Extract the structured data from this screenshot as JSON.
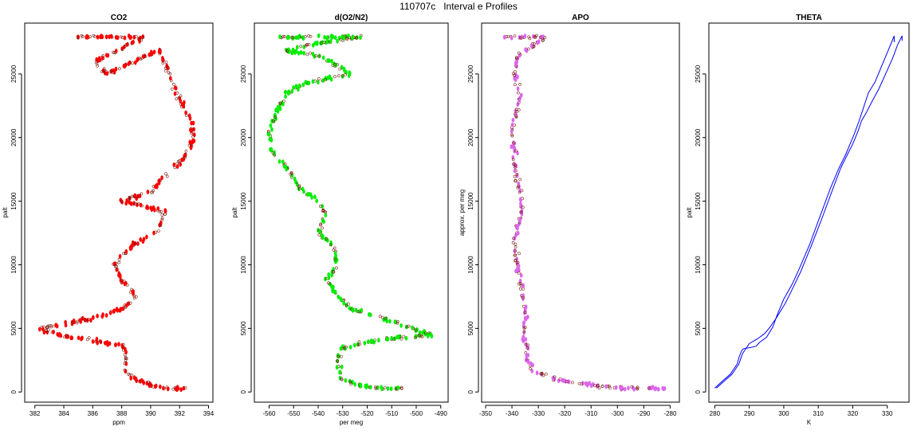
{
  "title": "110707c   Interval e Profiles",
  "chart_data": [
    {
      "type": "scatter",
      "title": "CO2",
      "xlabel": "ppm",
      "ylabel": "palt",
      "xlim": [
        381.3,
        394.3
      ],
      "ylim": [
        -800,
        29000
      ],
      "xticks": [
        382,
        384,
        386,
        388,
        390,
        392,
        394
      ],
      "yticks": [
        0,
        5000,
        10000,
        15000,
        20000,
        25000
      ],
      "grid": false,
      "color": "#ff0000",
      "profile": [
        [
          384.8,
          27900
        ],
        [
          388.3,
          27900
        ],
        [
          389.5,
          27900
        ],
        [
          388.5,
          27300
        ],
        [
          386.2,
          26000
        ],
        [
          387.0,
          25000
        ],
        [
          390.6,
          26900
        ],
        [
          391.6,
          24000
        ],
        [
          392.1,
          22800
        ],
        [
          392.7,
          21500
        ],
        [
          393.0,
          20000
        ],
        [
          392.4,
          18500
        ],
        [
          391.0,
          17000
        ],
        [
          390.0,
          15800
        ],
        [
          388.0,
          15000
        ],
        [
          391.0,
          14200
        ],
        [
          390.4,
          12600
        ],
        [
          388.7,
          11500
        ],
        [
          387.5,
          10000
        ],
        [
          388.0,
          8800
        ],
        [
          389.0,
          7500
        ],
        [
          388.2,
          6600
        ],
        [
          386.0,
          5800
        ],
        [
          383.5,
          5200
        ],
        [
          382.2,
          5000
        ],
        [
          384.0,
          4400
        ],
        [
          386.4,
          4000
        ],
        [
          388.1,
          3600
        ],
        [
          388.3,
          2600
        ],
        [
          388.2,
          1600
        ],
        [
          389.0,
          1000
        ],
        [
          390.8,
          300
        ],
        [
          391.5,
          300
        ],
        [
          392.5,
          300
        ]
      ]
    },
    {
      "type": "scatter",
      "title": "d(O2/N2)",
      "xlabel": "per meg",
      "ylabel": "palt",
      "xlim": [
        -566,
        -487
      ],
      "ylim": [
        -800,
        29000
      ],
      "xticks": [
        -560,
        -550,
        -540,
        -530,
        -520,
        -510,
        -500,
        -490
      ],
      "yticks": [
        0,
        5000,
        10000,
        15000,
        20000,
        25000
      ],
      "grid": false,
      "color": "#00ee00",
      "profile": [
        [
          -556,
          27900
        ],
        [
          -530,
          27900
        ],
        [
          -522,
          27900
        ],
        [
          -545,
          27300
        ],
        [
          -553,
          26800
        ],
        [
          -540,
          26500
        ],
        [
          -527,
          25000
        ],
        [
          -545,
          24300
        ],
        [
          -553,
          23500
        ],
        [
          -557,
          22000
        ],
        [
          -560,
          20500
        ],
        [
          -559,
          19000
        ],
        [
          -552,
          17400
        ],
        [
          -547,
          16000
        ],
        [
          -540,
          15000
        ],
        [
          -537,
          14000
        ],
        [
          -540,
          12500
        ],
        [
          -534,
          11500
        ],
        [
          -532,
          10000
        ],
        [
          -537,
          8800
        ],
        [
          -532,
          7600
        ],
        [
          -526,
          6500
        ],
        [
          -517,
          6000
        ],
        [
          -510,
          5600
        ],
        [
          -499,
          4800
        ],
        [
          -494,
          4500
        ],
        [
          -515,
          4100
        ],
        [
          -530,
          3500
        ],
        [
          -532,
          2600
        ],
        [
          -531,
          1600
        ],
        [
          -530,
          1000
        ],
        [
          -522,
          500
        ],
        [
          -514,
          300
        ],
        [
          -505,
          300
        ]
      ]
    },
    {
      "type": "scatter",
      "title": "APO",
      "xlabel": "",
      "ylabel": "approx. per meg",
      "xlim": [
        -351.5,
        -276.5
      ],
      "ylim": [
        -800,
        29000
      ],
      "xticks": [
        -350,
        -340,
        -330,
        -320,
        -310,
        -300,
        -290,
        -280
      ],
      "yticks": [
        0,
        5000,
        10000,
        15000,
        20000,
        25000
      ],
      "grid": false,
      "color": "#dd66ee",
      "profile": [
        [
          -343,
          27900
        ],
        [
          -334,
          27900
        ],
        [
          -327,
          27900
        ],
        [
          -338,
          26500
        ],
        [
          -339,
          25000
        ],
        [
          -337,
          23500
        ],
        [
          -338,
          22000
        ],
        [
          -340,
          20500
        ],
        [
          -339,
          19000
        ],
        [
          -339,
          17500
        ],
        [
          -337,
          16000
        ],
        [
          -336,
          14500
        ],
        [
          -338,
          13000
        ],
        [
          -339,
          11500
        ],
        [
          -338,
          10000
        ],
        [
          -337,
          8800
        ],
        [
          -336,
          7600
        ],
        [
          -335,
          6500
        ],
        [
          -335,
          5500
        ],
        [
          -336,
          4500
        ],
        [
          -334,
          3500
        ],
        [
          -334,
          2500
        ],
        [
          -331,
          1600
        ],
        [
          -322,
          900
        ],
        [
          -311,
          600
        ],
        [
          -300,
          300
        ],
        [
          -290,
          300
        ],
        [
          -282,
          300
        ]
      ]
    },
    {
      "type": "line",
      "title": "THETA",
      "xlabel": "K",
      "ylabel": "palt",
      "xlim": [
        278.3,
        336.3
      ],
      "ylim": [
        -800,
        29000
      ],
      "xticks": [
        280,
        290,
        300,
        310,
        320,
        330
      ],
      "yticks": [
        0,
        5000,
        10000,
        15000,
        20000,
        25000
      ],
      "grid": false,
      "color": "#0000ff",
      "series": [
        {
          "x": [
            280.0,
            282.0,
            284.5,
            286.5,
            287.0,
            287.7,
            288.3,
            290.5,
            292.0,
            293.0,
            295.0,
            296.8,
            298.0,
            300.0,
            302.5,
            304.5,
            307.5,
            310.5,
            313.5,
            316.0,
            318.0,
            320.3,
            321.8,
            322.8,
            324.5,
            326.5,
            328.5,
            330.5,
            332.0,
            332.0
          ],
          "y": [
            300,
            800,
            1400,
            2200,
            2700,
            3200,
            3400,
            3500,
            3600,
            3900,
            4300,
            5100,
            6000,
            7300,
            8500,
            9700,
            11600,
            13800,
            16000,
            17600,
            18700,
            20200,
            21300,
            22100,
            23500,
            24400,
            25700,
            27000,
            28000,
            27500
          ]
        },
        {
          "x": [
            280.5,
            282.5,
            285.0,
            287.0,
            288.0,
            290.0,
            292.5,
            294.5,
            296.0,
            297.8,
            300.5,
            302.5,
            305.0,
            308.0,
            311.0,
            314.0,
            316.5,
            318.5,
            320.0,
            321.5,
            322.5,
            324.0,
            325.5,
            327.5,
            329.5,
            331.5,
            333.0,
            334.3,
            334.3
          ],
          "y": [
            300,
            800,
            1400,
            2200,
            3000,
            3800,
            4200,
            4600,
            5100,
            5800,
            7000,
            8100,
            9500,
            11500,
            13600,
            15800,
            17600,
            18700,
            19500,
            20500,
            21300,
            22000,
            22800,
            23800,
            25000,
            26200,
            27300,
            28000,
            27600
          ]
        }
      ]
    }
  ]
}
